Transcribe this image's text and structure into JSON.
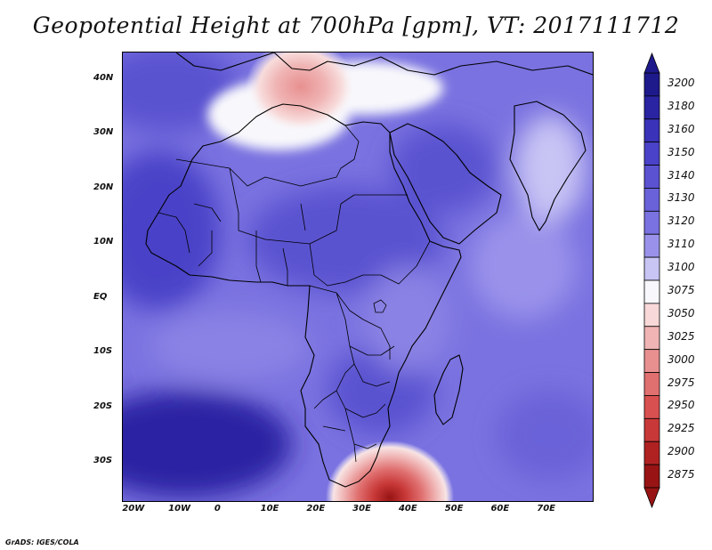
{
  "title": "Geopotential Height at 700hPa [gpm], VT: 2017111712",
  "credit": "GrADS: IGES/COLA",
  "map": {
    "lon_labels": [
      "20W",
      "10W",
      "0",
      "10E",
      "20E",
      "30E",
      "40E",
      "50E",
      "60E",
      "70E"
    ],
    "lat_labels": [
      "40N",
      "30N",
      "20N",
      "10N",
      "EQ",
      "10S",
      "20S",
      "30S"
    ],
    "lon_values": [
      -20,
      -10,
      0,
      10,
      20,
      30,
      40,
      50,
      60,
      70
    ],
    "lat_values": [
      40,
      30,
      20,
      10,
      0,
      -10,
      -20,
      -30
    ],
    "lon_range": [
      -22,
      80
    ],
    "lat_range": [
      -37,
      45
    ]
  },
  "colorbar": {
    "levels": [
      "3200",
      "3180",
      "3160",
      "3150",
      "3140",
      "3130",
      "3120",
      "3110",
      "3100",
      "3075",
      "3050",
      "3025",
      "3000",
      "2975",
      "2950",
      "2925",
      "2900",
      "2875"
    ],
    "colors": [
      "#1e1a8c",
      "#2a24a3",
      "#3a32b8",
      "#4a42c8",
      "#5a52d0",
      "#6a62d8",
      "#7a72e0",
      "#9a92ea",
      "#c8c4f4",
      "#f8f8fc",
      "#f8d8d8",
      "#f0b4b4",
      "#e89090",
      "#e07070",
      "#d85050",
      "#c83838",
      "#b02222",
      "#981414"
    ]
  }
}
